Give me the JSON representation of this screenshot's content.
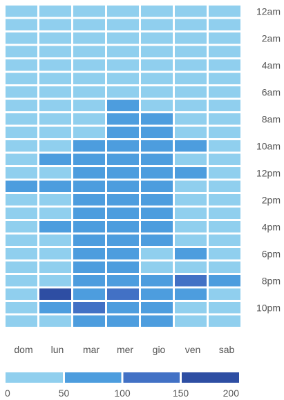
{
  "chart_data": {
    "type": "heatmap",
    "title": "",
    "xlabel": "",
    "ylabel": "",
    "days": [
      "dom",
      "lun",
      "mar",
      "mer",
      "gio",
      "ven",
      "sab"
    ],
    "hour_tick_labels": [
      "12am",
      "2am",
      "4am",
      "6am",
      "8am",
      "10am",
      "12pm",
      "2pm",
      "4pm",
      "6pm",
      "8pm",
      "10pm"
    ],
    "legend": {
      "ticks": [
        0,
        50,
        100,
        150,
        200
      ],
      "bins": [
        {
          "min": 0,
          "max": 50,
          "color": "#90cfee"
        },
        {
          "min": 50,
          "max": 100,
          "color": "#4d9dde"
        },
        {
          "min": 100,
          "max": 150,
          "color": "#4271c5"
        },
        {
          "min": 150,
          "max": 200,
          "color": "#2e4ea3"
        }
      ]
    },
    "values_by_hour": [
      [
        10,
        10,
        10,
        10,
        10,
        10,
        10
      ],
      [
        10,
        10,
        10,
        10,
        10,
        10,
        10
      ],
      [
        10,
        10,
        10,
        10,
        10,
        10,
        10
      ],
      [
        10,
        10,
        10,
        10,
        10,
        10,
        10
      ],
      [
        10,
        10,
        10,
        10,
        10,
        10,
        10
      ],
      [
        10,
        10,
        10,
        10,
        10,
        10,
        10
      ],
      [
        10,
        10,
        10,
        10,
        10,
        10,
        10
      ],
      [
        10,
        10,
        10,
        60,
        10,
        10,
        10
      ],
      [
        10,
        10,
        10,
        70,
        65,
        10,
        10
      ],
      [
        10,
        10,
        10,
        70,
        65,
        10,
        10
      ],
      [
        10,
        10,
        70,
        70,
        65,
        70,
        10
      ],
      [
        10,
        70,
        70,
        70,
        65,
        10,
        10
      ],
      [
        10,
        10,
        70,
        70,
        70,
        70,
        10
      ],
      [
        70,
        70,
        70,
        70,
        70,
        10,
        10
      ],
      [
        10,
        10,
        70,
        70,
        70,
        10,
        10
      ],
      [
        10,
        10,
        70,
        70,
        70,
        10,
        10
      ],
      [
        10,
        70,
        70,
        70,
        70,
        10,
        10
      ],
      [
        10,
        10,
        70,
        70,
        70,
        10,
        10
      ],
      [
        10,
        10,
        70,
        70,
        10,
        70,
        10
      ],
      [
        10,
        10,
        70,
        70,
        10,
        10,
        10
      ],
      [
        10,
        10,
        70,
        70,
        70,
        110,
        70
      ],
      [
        10,
        180,
        70,
        110,
        70,
        70,
        10
      ],
      [
        10,
        70,
        110,
        70,
        70,
        10,
        10
      ],
      [
        10,
        10,
        70,
        70,
        70,
        10,
        10
      ]
    ]
  }
}
